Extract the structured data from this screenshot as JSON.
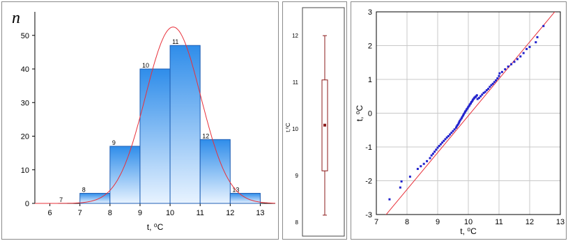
{
  "colors": {
    "bar_top": "#2f8dea",
    "bar_bottom": "#e8f3ff",
    "bar_stroke": "#1f5fb5",
    "curve": "#e8303a",
    "box_line": "#8b1a1a",
    "qq_point": "#2222cc",
    "qq_line": "#e8303a",
    "grid": "#c8c8c8"
  },
  "chart_data": [
    {
      "type": "bar",
      "subtype": "histogram",
      "ylabel": "n",
      "xlabel": "t, ⁰C",
      "xlim": [
        5.5,
        13.5
      ],
      "ylim": [
        0,
        57
      ],
      "xticks": [
        6,
        7,
        8,
        9,
        10,
        11,
        12,
        13
      ],
      "yticks": [
        0,
        10,
        20,
        30,
        40,
        50
      ],
      "bins": [
        {
          "start": 6,
          "end": 7,
          "value": 0,
          "label": "7"
        },
        {
          "start": 7,
          "end": 8,
          "value": 3,
          "label": "8"
        },
        {
          "start": 8,
          "end": 9,
          "value": 17,
          "label": "9"
        },
        {
          "start": 9,
          "end": 10,
          "value": 40,
          "label": "10"
        },
        {
          "start": 10,
          "end": 11,
          "value": 47,
          "label": "11"
        },
        {
          "start": 11,
          "end": 12,
          "value": 19,
          "label": "12"
        },
        {
          "start": 12,
          "end": 13,
          "value": 3,
          "label": "13"
        }
      ],
      "normal_curve": {
        "mean": 10.1,
        "sd": 0.92,
        "peak": 52.5
      },
      "grid": false
    },
    {
      "type": "box",
      "ylabel": "t,⁰C",
      "ylim": [
        7.7,
        12.6
      ],
      "yticks": [
        8,
        9,
        10,
        11,
        12
      ],
      "median": 10.08,
      "q1": 9.1,
      "q3": 11.05,
      "whisker_low": 8.15,
      "whisker_high": 12.0
    },
    {
      "type": "scatter",
      "subtype": "normal-probability",
      "xlabel": "t, ⁰C",
      "ylabel": "t, ⁰C",
      "xlim": [
        7,
        13
      ],
      "ylim": [
        -3,
        3
      ],
      "xticks": [
        7,
        8,
        9,
        10,
        11,
        12,
        13
      ],
      "yticks": [
        -3,
        -2,
        -1,
        0,
        1,
        2,
        3
      ],
      "reference_line": {
        "x": [
          7,
          13
        ],
        "y": [
          -3.35,
          3.2
        ]
      },
      "grid": true,
      "points_x": [
        7.43,
        7.78,
        7.82,
        8.1,
        8.35,
        8.45,
        8.55,
        8.65,
        8.75,
        8.8,
        8.85,
        8.9,
        8.95,
        9.0,
        9.05,
        9.1,
        9.15,
        9.2,
        9.25,
        9.3,
        9.35,
        9.4,
        9.45,
        9.5,
        9.55,
        9.6,
        9.62,
        9.65,
        9.68,
        9.7,
        9.72,
        9.75,
        9.78,
        9.8,
        9.83,
        9.85,
        9.88,
        9.9,
        9.93,
        9.95,
        9.98,
        10.0,
        10.03,
        10.05,
        10.08,
        10.1,
        10.13,
        10.15,
        10.18,
        10.2,
        10.23,
        10.25,
        10.28,
        10.3,
        10.35,
        10.4,
        10.45,
        10.5,
        10.55,
        10.6,
        10.65,
        10.7,
        10.75,
        10.8,
        10.85,
        10.9,
        10.95,
        11.0,
        11.02,
        11.1,
        11.2,
        11.3,
        11.4,
        11.5,
        11.6,
        11.7,
        11.8,
        11.9,
        12.0,
        12.2,
        12.25,
        12.45
      ],
      "points_y": [
        -2.55,
        -2.2,
        -2.02,
        -1.88,
        -1.65,
        -1.57,
        -1.5,
        -1.42,
        -1.33,
        -1.25,
        -1.2,
        -1.14,
        -1.08,
        -1.02,
        -0.97,
        -0.92,
        -0.87,
        -0.82,
        -0.77,
        -0.72,
        -0.68,
        -0.63,
        -0.58,
        -0.53,
        -0.48,
        -0.43,
        -0.39,
        -0.35,
        -0.31,
        -0.27,
        -0.23,
        -0.19,
        -0.15,
        -0.11,
        -0.07,
        -0.03,
        0.01,
        0.05,
        0.08,
        0.12,
        0.15,
        0.19,
        0.22,
        0.26,
        0.29,
        0.33,
        0.36,
        0.4,
        0.43,
        0.46,
        0.48,
        0.5,
        0.53,
        0.42,
        0.45,
        0.5,
        0.55,
        0.6,
        0.63,
        0.68,
        0.72,
        0.78,
        0.83,
        0.87,
        0.92,
        0.97,
        1.03,
        1.1,
        1.18,
        1.22,
        1.3,
        1.38,
        1.45,
        1.52,
        1.6,
        1.68,
        1.78,
        1.9,
        1.96,
        2.1,
        2.25,
        2.58
      ]
    }
  ]
}
